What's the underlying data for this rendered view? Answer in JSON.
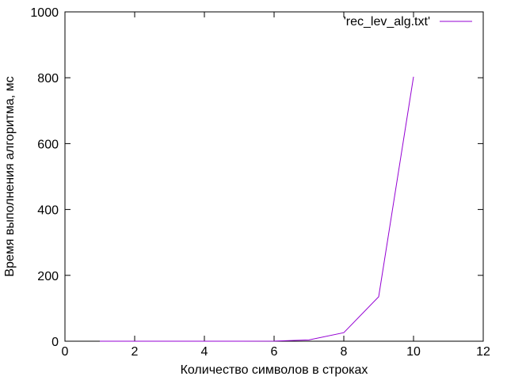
{
  "chart_data": {
    "type": "line",
    "title": "",
    "xlabel": "Количество символов в строках",
    "ylabel": "Время выполнения алгоритма, мс",
    "xlim": [
      0,
      12
    ],
    "ylim": [
      0,
      1000
    ],
    "xticks": [
      0,
      2,
      4,
      6,
      8,
      10,
      12
    ],
    "yticks": [
      0,
      200,
      400,
      600,
      800,
      1000
    ],
    "grid": false,
    "legend_position": "top-right",
    "series": [
      {
        "name": "'rec_lev_alg.txt'",
        "color": "#9400d3",
        "x": [
          1,
          2,
          3,
          4,
          5,
          6,
          7,
          8,
          9,
          10
        ],
        "y": [
          0,
          0,
          0,
          0,
          0,
          0.2,
          4,
          26,
          135,
          803
        ]
      }
    ]
  }
}
